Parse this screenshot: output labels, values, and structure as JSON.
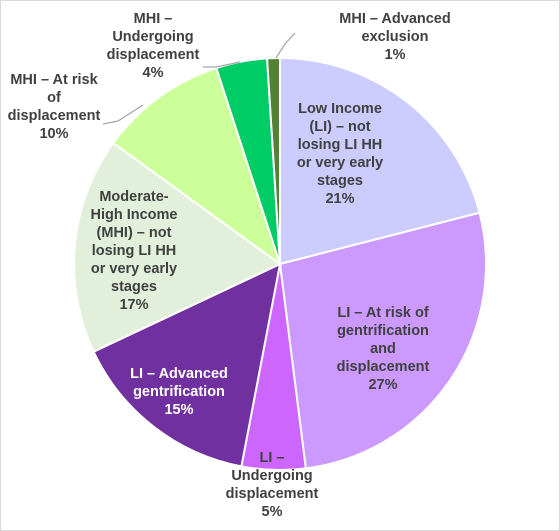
{
  "chart_data": {
    "type": "pie",
    "title": "",
    "start_angle_deg": 0,
    "direction": "clockwise",
    "slices": [
      {
        "label": "Low Income (LI) – not losing LI HH or very early stages",
        "value": 21,
        "pct_label": "21%",
        "color": "#ccccff"
      },
      {
        "label": "LI – At risk of gentrification and displacement",
        "value": 27,
        "pct_label": "27%",
        "color": "#cc99ff"
      },
      {
        "label": "LI – Undergoing displacement",
        "value": 5,
        "pct_label": "5%",
        "color": "#cc66ff"
      },
      {
        "label": "LI – Advanced gentrification",
        "value": 15,
        "pct_label": "15%",
        "color": "#7030a0"
      },
      {
        "label": "Moderate-High Income (MHI) – not losing LI HH or very early stages",
        "value": 17,
        "pct_label": "17%",
        "color": "#e2efda"
      },
      {
        "label": "MHI – At risk of displacement",
        "value": 10,
        "pct_label": "10%",
        "color": "#ccff99"
      },
      {
        "label": "MHI – Undergoing displacement",
        "value": 4,
        "pct_label": "4%",
        "color": "#00cc66"
      },
      {
        "label": "MHI – Advanced exclusion",
        "value": 1,
        "pct_label": "1%",
        "color": "#548235"
      }
    ]
  }
}
